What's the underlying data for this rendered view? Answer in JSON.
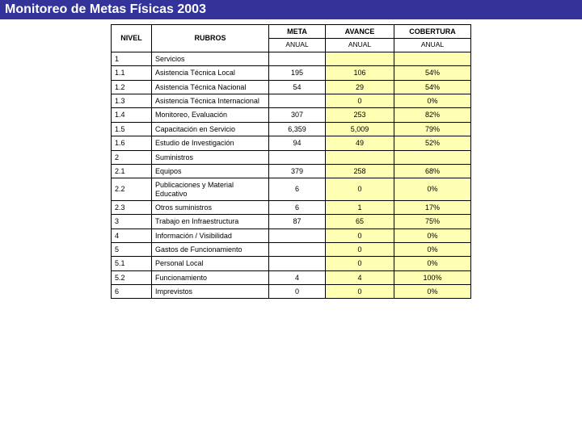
{
  "title": "Monitoreo de Metas Físicas 2003",
  "colors": {
    "title_bg": "#333399",
    "title_fg": "#ffffff",
    "row_highlight": "#ffffb3",
    "border": "#000000"
  },
  "columns": {
    "nivel": "NIVEL",
    "rubros": "RUBROS",
    "meta": "META",
    "avance": "AVANCE",
    "cobertura": "COBERTURA",
    "anual": "ANUAL"
  },
  "rows": [
    {
      "nivel": "1",
      "rubros": "Servicios",
      "meta": "",
      "avance": "",
      "cobertura": ""
    },
    {
      "nivel": "1.1",
      "rubros": "Asistencia Técnica Local",
      "meta": "195",
      "avance": "106",
      "cobertura": "54%"
    },
    {
      "nivel": "1.2",
      "rubros": "Asistencia Técnica Nacional",
      "meta": "54",
      "avance": "29",
      "cobertura": "54%"
    },
    {
      "nivel": "1.3",
      "rubros": "Asistencia Técnica Internacional",
      "meta": "",
      "avance": "0",
      "cobertura": "0%"
    },
    {
      "nivel": "1.4",
      "rubros": "Monitoreo, Evaluación",
      "meta": "307",
      "avance": "253",
      "cobertura": "82%"
    },
    {
      "nivel": "1.5",
      "rubros": "Capacitación en Servicio",
      "meta": "6,359",
      "avance": "5,009",
      "cobertura": "79%"
    },
    {
      "nivel": "1.6",
      "rubros": "Estudio de Investigación",
      "meta": "94",
      "avance": "49",
      "cobertura": "52%"
    },
    {
      "nivel": "2",
      "rubros": "Suministros",
      "meta": "",
      "avance": "",
      "cobertura": ""
    },
    {
      "nivel": "2.1",
      "rubros": "Equipos",
      "meta": "379",
      "avance": "258",
      "cobertura": "68%"
    },
    {
      "nivel": "2.2",
      "rubros": "Publicaciones y Material Educativo",
      "meta": "6",
      "avance": "0",
      "cobertura": "0%"
    },
    {
      "nivel": "2.3",
      "rubros": "Otros suministros",
      "meta": "6",
      "avance": "1",
      "cobertura": "17%"
    },
    {
      "nivel": "3",
      "rubros": "Trabajo en Infraestructura",
      "meta": "87",
      "avance": "65",
      "cobertura": "75%"
    },
    {
      "nivel": "4",
      "rubros": "Información / Visibilidad",
      "meta": "",
      "avance": "0",
      "cobertura": "0%"
    },
    {
      "nivel": "5",
      "rubros": "Gastos de Funcionamiento",
      "meta": "",
      "avance": "0",
      "cobertura": "0%"
    },
    {
      "nivel": "5.1",
      "rubros": "Personal Local",
      "meta": "",
      "avance": "0",
      "cobertura": "0%"
    },
    {
      "nivel": "5.2",
      "rubros": "Funcionamiento",
      "meta": "4",
      "avance": "4",
      "cobertura": "100%"
    },
    {
      "nivel": "6",
      "rubros": "Imprevistos",
      "meta": "0",
      "avance": "0",
      "cobertura": "0%"
    }
  ]
}
